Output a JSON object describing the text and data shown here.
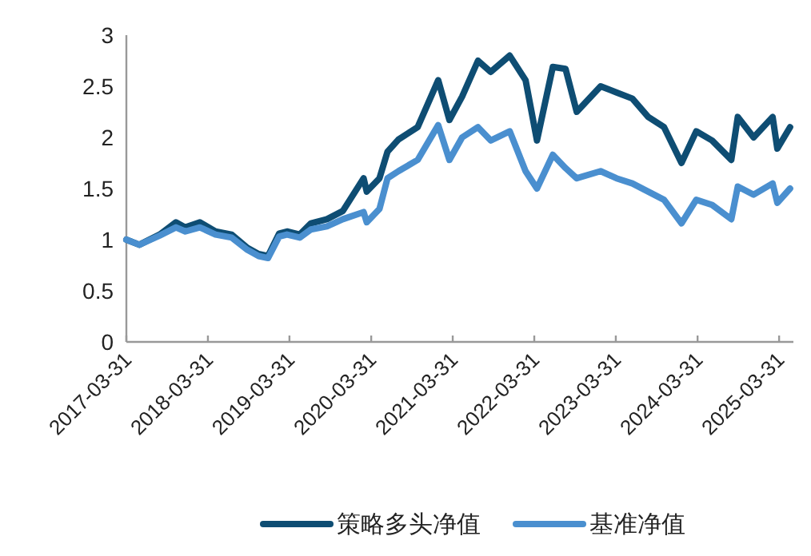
{
  "chart_data": {
    "type": "line",
    "x": [
      "2017-03-31",
      "2017-05-28",
      "2017-08-27",
      "2017-11-08",
      "2017-12-20",
      "2018-02-23",
      "2018-05-04",
      "2018-07-15",
      "2018-09-24",
      "2018-11-13",
      "2018-12-25",
      "2019-02-13",
      "2019-03-20",
      "2019-05-16",
      "2019-07-05",
      "2019-09-15",
      "2019-11-25",
      "2020-02-26",
      "2020-03-11",
      "2020-05-07",
      "2020-06-12",
      "2020-07-31",
      "2020-10-25",
      "2021-01-25",
      "2021-03-16",
      "2021-05-12",
      "2021-07-22",
      "2021-09-17",
      "2021-12-11",
      "2022-02-20",
      "2022-04-12",
      "2022-06-22",
      "2022-08-18",
      "2022-10-07",
      "2023-01-22",
      "2023-04-03",
      "2023-06-13",
      "2023-08-23",
      "2023-11-02",
      "2024-01-19",
      "2024-03-25",
      "2024-06-04",
      "2024-08-29",
      "2024-09-27",
      "2024-12-07",
      "2025-03-02",
      "2025-03-23",
      "2025-05-19"
    ],
    "series": [
      {
        "name": "策略多头净值",
        "color": "#0e4d73",
        "values": [
          1.0,
          0.95,
          1.05,
          1.17,
          1.12,
          1.17,
          1.08,
          1.05,
          0.92,
          0.86,
          0.84,
          1.06,
          1.08,
          1.05,
          1.16,
          1.2,
          1.28,
          1.6,
          1.47,
          1.6,
          1.86,
          1.98,
          2.1,
          2.56,
          2.17,
          2.4,
          2.75,
          2.64,
          2.8,
          2.56,
          1.97,
          2.69,
          2.67,
          2.25,
          2.5,
          2.44,
          2.38,
          2.2,
          2.1,
          1.75,
          2.06,
          1.97,
          1.78,
          2.2,
          2.0,
          2.2,
          1.89,
          2.1
        ]
      },
      {
        "name": "基准净值",
        "color": "#4a8fcf",
        "values": [
          1.0,
          0.95,
          1.04,
          1.12,
          1.08,
          1.12,
          1.05,
          1.02,
          0.9,
          0.84,
          0.82,
          1.03,
          1.05,
          1.02,
          1.1,
          1.13,
          1.2,
          1.27,
          1.17,
          1.3,
          1.6,
          1.67,
          1.78,
          2.12,
          1.78,
          2.0,
          2.1,
          1.97,
          2.06,
          1.67,
          1.5,
          1.83,
          1.7,
          1.6,
          1.67,
          1.6,
          1.55,
          1.47,
          1.39,
          1.16,
          1.39,
          1.34,
          1.2,
          1.52,
          1.44,
          1.55,
          1.36,
          1.5
        ]
      }
    ],
    "xlim": [
      "2017-03-31",
      "2025-06-03"
    ],
    "xticks": [
      "2017-03-31",
      "2018-03-31",
      "2019-03-31",
      "2020-03-31",
      "2021-03-31",
      "2022-03-31",
      "2023-03-31",
      "2024-03-31",
      "2025-03-31"
    ],
    "ylim": [
      0,
      3
    ],
    "yticks": [
      0,
      0.5,
      1,
      1.5,
      2,
      2.5,
      3
    ],
    "grid": false,
    "legend": "bottom",
    "marker": "none",
    "line_style": "solid"
  }
}
